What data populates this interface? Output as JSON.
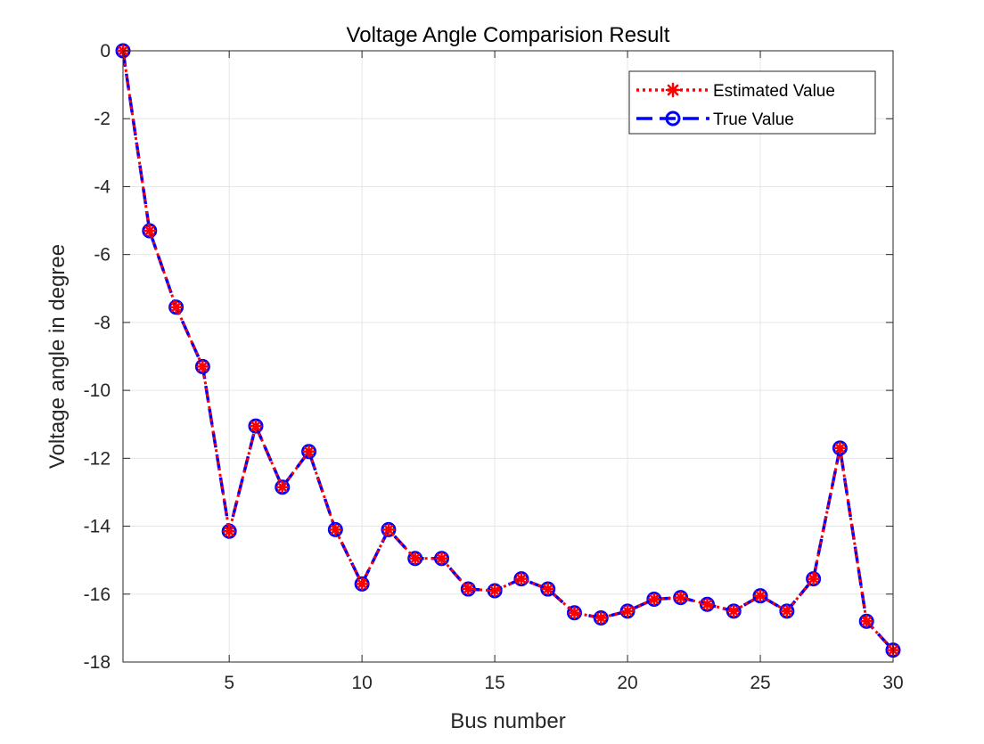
{
  "chart_data": {
    "type": "line",
    "title": "Voltage Angle Comparision Result",
    "xlabel": "Bus number",
    "ylabel": "Voltage angle in degree",
    "xlim": [
      1,
      30
    ],
    "ylim": [
      -18,
      0
    ],
    "xticks": [
      5,
      10,
      15,
      20,
      25,
      30
    ],
    "yticks": [
      0,
      -2,
      -4,
      -6,
      -8,
      -10,
      -12,
      -14,
      -16,
      -18
    ],
    "grid": true,
    "legend_position": "top-right",
    "x": [
      1,
      2,
      3,
      4,
      5,
      6,
      7,
      8,
      9,
      10,
      11,
      12,
      13,
      14,
      15,
      16,
      17,
      18,
      19,
      20,
      21,
      22,
      23,
      24,
      25,
      26,
      27,
      28,
      29,
      30
    ],
    "series": [
      {
        "name": "Estimated Value",
        "color": "#ff0000",
        "line_style": "dotted",
        "marker": "asterisk",
        "values": [
          0,
          -5.3,
          -7.55,
          -9.3,
          -14.15,
          -11.05,
          -12.85,
          -11.8,
          -14.1,
          -15.7,
          -14.1,
          -14.95,
          -14.95,
          -15.85,
          -15.9,
          -15.55,
          -15.85,
          -16.55,
          -16.7,
          -16.5,
          -16.15,
          -16.1,
          -16.3,
          -16.5,
          -16.05,
          -16.5,
          -15.55,
          -11.7,
          -16.8,
          -17.65
        ]
      },
      {
        "name": "True Value",
        "color": "#0000ff",
        "line_style": "dashed",
        "marker": "circle",
        "values": [
          0,
          -5.3,
          -7.55,
          -9.3,
          -14.15,
          -11.05,
          -12.85,
          -11.8,
          -14.1,
          -15.7,
          -14.1,
          -14.95,
          -14.95,
          -15.85,
          -15.9,
          -15.55,
          -15.85,
          -16.55,
          -16.7,
          -16.5,
          -16.15,
          -16.1,
          -16.3,
          -16.5,
          -16.05,
          -16.5,
          -15.55,
          -11.7,
          -16.8,
          -17.65
        ]
      }
    ]
  }
}
